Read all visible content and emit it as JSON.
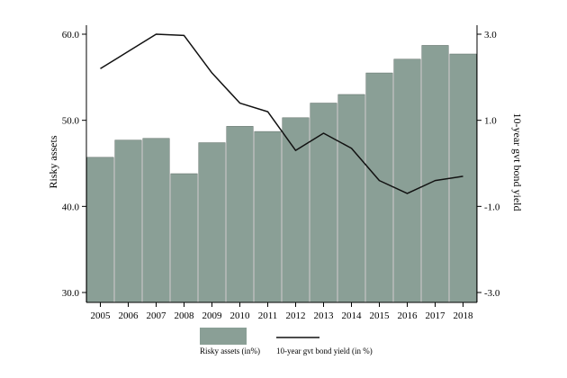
{
  "chart_data": {
    "type": "bar",
    "categories": [
      "2005",
      "2006",
      "2007",
      "2008",
      "2009",
      "2010",
      "2011",
      "2012",
      "2013",
      "2014",
      "2015",
      "2016",
      "2017",
      "2018"
    ],
    "series": [
      {
        "name": "Risky assets (in%)",
        "type": "bar",
        "axis": "left",
        "color": "#8a9f96",
        "values": [
          45.7,
          47.7,
          47.9,
          43.8,
          47.4,
          49.3,
          48.7,
          50.3,
          52.0,
          53.0,
          55.5,
          57.1,
          58.7,
          57.7
        ]
      },
      {
        "name": "10-year gvt bond yield (in %)",
        "type": "line",
        "axis": "right",
        "color": "#111111",
        "values": [
          2.2,
          2.6,
          3.0,
          2.97,
          2.1,
          1.4,
          1.2,
          0.3,
          0.7,
          0.35,
          -0.4,
          -0.7,
          -0.4,
          -0.3
        ]
      }
    ],
    "ylabel": "Risky assets",
    "ylabel_right": "10-year gvt bond yield",
    "ylim": [
      30,
      60
    ],
    "ylim_right": [
      -3,
      3
    ],
    "yticks": [
      "60.0",
      "50.0",
      "40.0",
      "30.0"
    ],
    "yticks_right": [
      "3.0",
      "1.0",
      "-1.0",
      "-3.0"
    ],
    "grid": false,
    "legend_position": "bottom"
  }
}
